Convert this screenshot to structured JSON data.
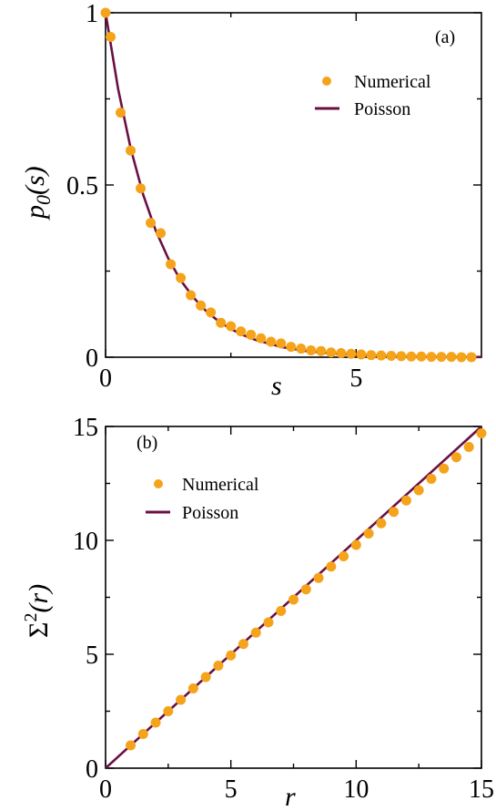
{
  "colors": {
    "numerical": "#f5a31a",
    "poisson": "#6b0f45"
  },
  "chart_data": [
    {
      "type": "scatter",
      "panel_label": "(a)",
      "xlabel": "s",
      "ylabel_base": "p",
      "ylabel_sub": "0",
      "ylabel_arg": "(s)",
      "xlim": [
        0,
        7.5
      ],
      "ylim": [
        0,
        1
      ],
      "xticks": [
        0,
        5
      ],
      "xtick_labels": [
        "0",
        "5"
      ],
      "yticks": [
        0,
        0.5,
        1
      ],
      "ytick_labels": [
        "0",
        "0.5",
        "1"
      ],
      "legend": {
        "position": "top-right",
        "entries": [
          "Numerical",
          "Poisson"
        ]
      },
      "series": [
        {
          "name": "Numerical",
          "kind": "points",
          "x": [
            0,
            0.1,
            0.3,
            0.5,
            0.7,
            0.9,
            1.1,
            1.3,
            1.5,
            1.7,
            1.9,
            2.1,
            2.3,
            2.5,
            2.7,
            2.9,
            3.1,
            3.3,
            3.5,
            3.7,
            3.9,
            4.1,
            4.3,
            4.5,
            4.7,
            4.9,
            5.1,
            5.3,
            5.5,
            5.7,
            5.9,
            6.1,
            6.3,
            6.5,
            6.7,
            6.9,
            7.1,
            7.3
          ],
          "y": [
            1.0,
            0.93,
            0.71,
            0.6,
            0.49,
            0.39,
            0.36,
            0.27,
            0.23,
            0.18,
            0.15,
            0.13,
            0.1,
            0.09,
            0.075,
            0.065,
            0.055,
            0.045,
            0.04,
            0.03,
            0.025,
            0.02,
            0.018,
            0.014,
            0.012,
            0.01,
            0.008,
            0.006,
            0.005,
            0.004,
            0.003,
            0.002,
            0.002,
            0.001,
            0.001,
            0.001,
            0.0,
            0.0
          ]
        },
        {
          "name": "Poisson",
          "kind": "line",
          "x": [
            0,
            0.25,
            0.5,
            0.75,
            1.0,
            1.25,
            1.5,
            1.75,
            2.0,
            2.25,
            2.5,
            2.75,
            3.0,
            3.5,
            4.0,
            4.5,
            5.0,
            5.5,
            6.0,
            6.5,
            7.0,
            7.5
          ],
          "y": [
            1.0,
            0.779,
            0.607,
            0.472,
            0.368,
            0.287,
            0.223,
            0.174,
            0.135,
            0.105,
            0.082,
            0.064,
            0.05,
            0.03,
            0.018,
            0.011,
            0.007,
            0.004,
            0.002,
            0.0015,
            0.0009,
            0.0006
          ]
        }
      ]
    },
    {
      "type": "scatter",
      "panel_label": "(b)",
      "xlabel": "r",
      "ylabel_base": "Σ",
      "ylabel_sup": "2",
      "ylabel_arg": "(r)",
      "xlim": [
        0,
        15
      ],
      "ylim": [
        0,
        15
      ],
      "xticks": [
        0,
        5,
        10,
        15
      ],
      "xtick_labels": [
        "0",
        "5",
        "10",
        "15"
      ],
      "yticks": [
        0,
        5,
        10,
        15
      ],
      "ytick_labels": [
        "0",
        "5",
        "10",
        "15"
      ],
      "legend": {
        "position": "top-left",
        "entries": [
          "Numerical",
          "Poisson"
        ]
      },
      "series": [
        {
          "name": "Numerical",
          "kind": "points",
          "x": [
            1,
            1.5,
            2,
            2.5,
            3,
            3.5,
            4,
            4.5,
            5,
            5.5,
            6,
            6.5,
            7,
            7.5,
            8,
            8.5,
            9,
            9.5,
            10,
            10.5,
            11,
            11.5,
            12,
            12.5,
            13,
            13.5,
            14,
            14.5,
            15
          ],
          "y": [
            1.0,
            1.5,
            2.0,
            2.5,
            3.0,
            3.5,
            4.0,
            4.5,
            4.95,
            5.45,
            5.95,
            6.4,
            6.9,
            7.4,
            7.85,
            8.35,
            8.85,
            9.3,
            9.8,
            10.3,
            10.75,
            11.25,
            11.75,
            12.2,
            12.7,
            13.15,
            13.65,
            14.1,
            14.7
          ]
        },
        {
          "name": "Poisson",
          "kind": "line",
          "x": [
            0,
            15
          ],
          "y": [
            0,
            15
          ]
        }
      ]
    }
  ]
}
